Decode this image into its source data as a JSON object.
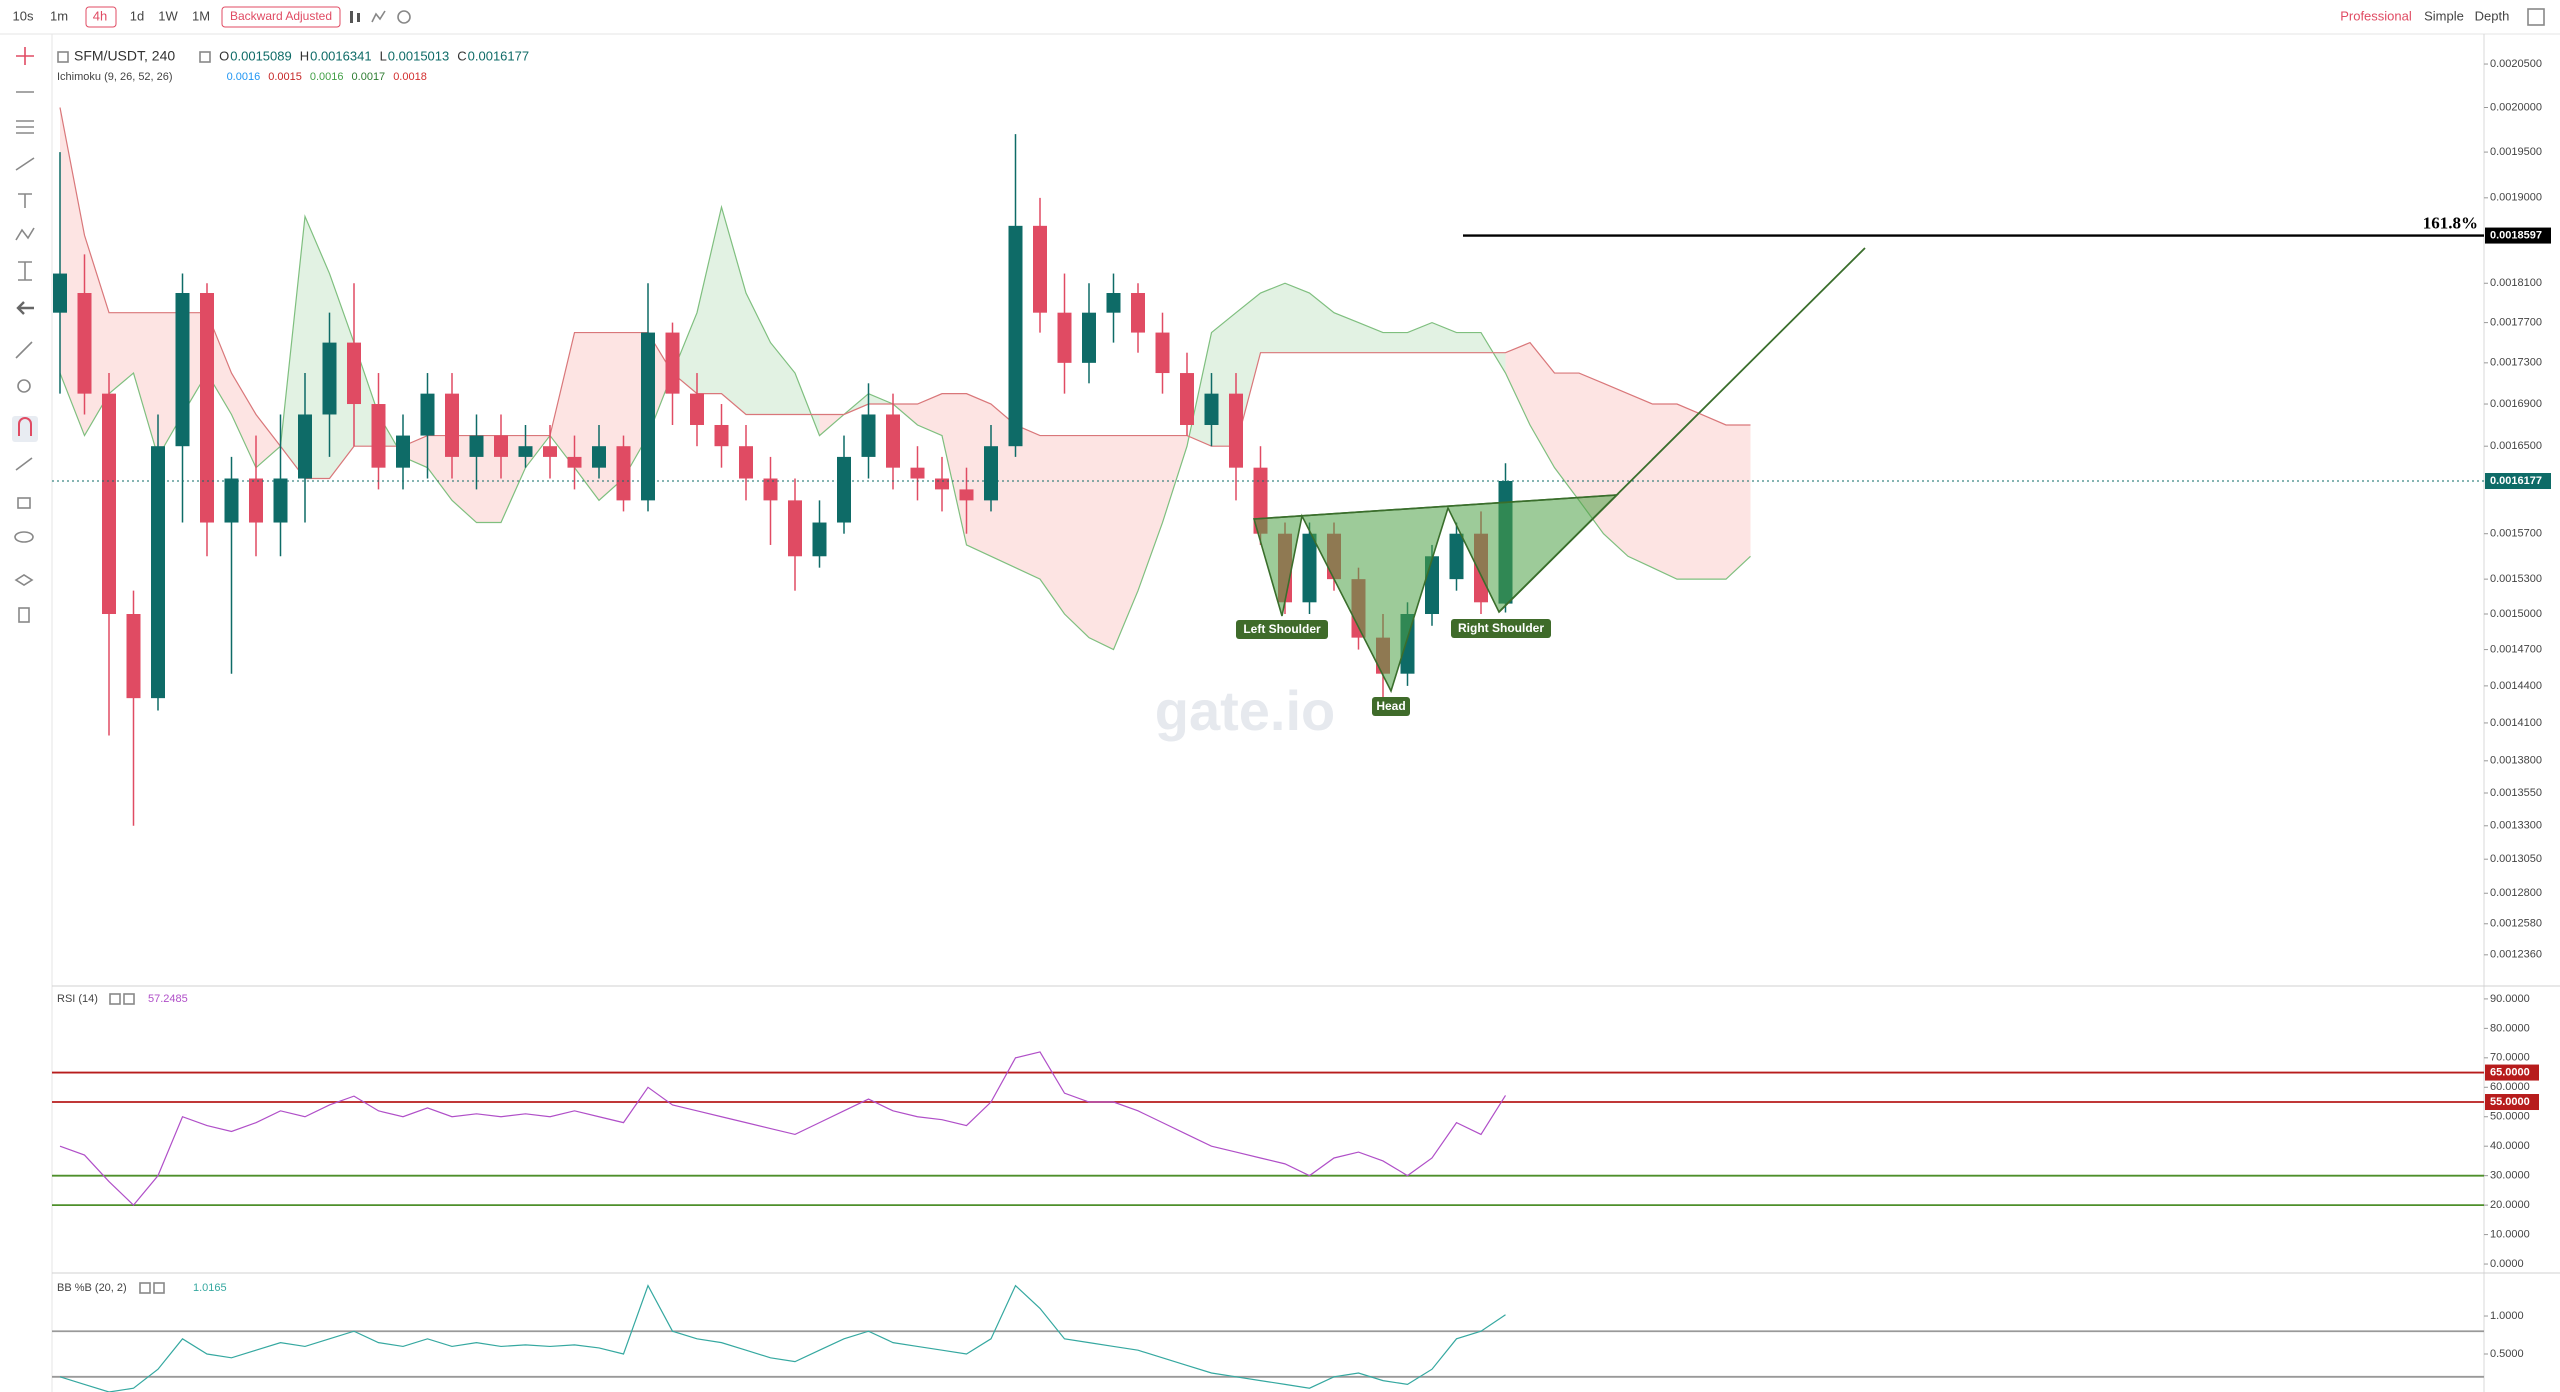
{
  "toolbar": {
    "intervals": [
      "10s",
      "1m",
      "4h",
      "1d",
      "1W",
      "1M"
    ],
    "adjust": "Backward Adjusted",
    "views": [
      "Professional",
      "Simple",
      "Depth"
    ]
  },
  "legend": {
    "symbol": "SFM/USDT, 240",
    "ohlc_labels": [
      "O",
      "H",
      "L",
      "C"
    ],
    "ichimoku": "Ichimoku (9, 26, 52, 26)",
    "ichimoku_values": [
      {
        "value": 0.0016,
        "color": "#2196f3"
      },
      {
        "value": 0.0015,
        "color": "#c62828"
      },
      {
        "value": 0.0016,
        "color": "#43a047"
      },
      {
        "value": 0.0017,
        "color": "#2e7d32"
      },
      {
        "value": 0.0018,
        "color": "#d32f2f"
      }
    ]
  },
  "watermark": "gate.io",
  "chart_data": [
    {
      "type": "candlestick",
      "log": true,
      "ylim": [
        0.001215,
        0.002077
      ],
      "yticks": [
        {
          "value": 0.00205,
          "label": "0.0020500"
        },
        {
          "value": 0.002,
          "label": "0.0020000"
        },
        {
          "value": 0.00195,
          "label": "0.0019500"
        },
        {
          "value": 0.0019,
          "label": "0.0019000"
        },
        {
          "value": 0.00181,
          "label": "0.0018100"
        },
        {
          "value": 0.00177,
          "label": "0.0017700"
        },
        {
          "value": 0.00173,
          "label": "0.0017300"
        },
        {
          "value": 0.00169,
          "label": "0.0016900"
        },
        {
          "value": 0.00165,
          "label": "0.0016500"
        },
        {
          "value": 0.00157,
          "label": "0.0015700"
        },
        {
          "value": 0.00153,
          "label": "0.0015300"
        },
        {
          "value": 0.0015,
          "label": "0.0015000"
        },
        {
          "value": 0.00147,
          "label": "0.0014700"
        },
        {
          "value": 0.00144,
          "label": "0.0014400"
        },
        {
          "value": 0.00141,
          "label": "0.0014100"
        },
        {
          "value": 0.00138,
          "label": "0.0013800"
        },
        {
          "value": 0.001355,
          "label": "0.0013550"
        },
        {
          "value": 0.00133,
          "label": "0.0013300"
        },
        {
          "value": 0.001305,
          "label": "0.0013050"
        },
        {
          "value": 0.00128,
          "label": "0.0012800"
        },
        {
          "value": 0.001258,
          "label": "0.0012580"
        },
        {
          "value": 0.001236,
          "label": "0.0012360"
        }
      ],
      "up_color": "#0e6b67",
      "down_color": "#e04b63",
      "ohlc": [
        [
          0.00178,
          0.00195,
          0.0017,
          0.00182
        ],
        [
          0.0018,
          0.00184,
          0.00168,
          0.0017
        ],
        [
          0.0017,
          0.00172,
          0.0014,
          0.0015
        ],
        [
          0.0015,
          0.00152,
          0.00133,
          0.00143
        ],
        [
          0.00143,
          0.00168,
          0.00142,
          0.00165
        ],
        [
          0.00165,
          0.00182,
          0.00158,
          0.0018
        ],
        [
          0.0018,
          0.00181,
          0.00155,
          0.00158
        ],
        [
          0.00158,
          0.00164,
          0.00145,
          0.00162
        ],
        [
          0.00162,
          0.00166,
          0.00155,
          0.00158
        ],
        [
          0.00158,
          0.00168,
          0.00155,
          0.00162
        ],
        [
          0.00162,
          0.00172,
          0.00158,
          0.00168
        ],
        [
          0.00168,
          0.00178,
          0.00164,
          0.00175
        ],
        [
          0.00175,
          0.00181,
          0.00165,
          0.00169
        ],
        [
          0.00169,
          0.00172,
          0.00161,
          0.00163
        ],
        [
          0.00163,
          0.00168,
          0.00161,
          0.00166
        ],
        [
          0.00166,
          0.00172,
          0.00162,
          0.0017
        ],
        [
          0.0017,
          0.00172,
          0.00162,
          0.00164
        ],
        [
          0.00164,
          0.00168,
          0.00161,
          0.00166
        ],
        [
          0.00166,
          0.00168,
          0.00162,
          0.00164
        ],
        [
          0.00164,
          0.00167,
          0.00163,
          0.00165
        ],
        [
          0.00165,
          0.00167,
          0.00162,
          0.00164
        ],
        [
          0.00164,
          0.00166,
          0.00161,
          0.00163
        ],
        [
          0.00163,
          0.00167,
          0.00162,
          0.00165
        ],
        [
          0.00165,
          0.00166,
          0.00159,
          0.0016
        ],
        [
          0.0016,
          0.00181,
          0.00159,
          0.00176
        ],
        [
          0.00176,
          0.00177,
          0.00167,
          0.0017
        ],
        [
          0.0017,
          0.00172,
          0.00165,
          0.00167
        ],
        [
          0.00167,
          0.00169,
          0.00163,
          0.00165
        ],
        [
          0.00165,
          0.00167,
          0.0016,
          0.00162
        ],
        [
          0.00162,
          0.00164,
          0.00156,
          0.0016
        ],
        [
          0.0016,
          0.00162,
          0.00152,
          0.00155
        ],
        [
          0.00155,
          0.0016,
          0.00154,
          0.00158
        ],
        [
          0.00158,
          0.00166,
          0.00157,
          0.00164
        ],
        [
          0.00164,
          0.00171,
          0.00162,
          0.00168
        ],
        [
          0.00168,
          0.0017,
          0.00161,
          0.00163
        ],
        [
          0.00163,
          0.00165,
          0.0016,
          0.00162
        ],
        [
          0.00162,
          0.00164,
          0.00159,
          0.00161
        ],
        [
          0.00161,
          0.00163,
          0.00157,
          0.0016
        ],
        [
          0.0016,
          0.00167,
          0.00159,
          0.00165
        ],
        [
          0.00165,
          0.00197,
          0.00164,
          0.00187
        ],
        [
          0.00187,
          0.0019,
          0.00176,
          0.00178
        ],
        [
          0.00178,
          0.00182,
          0.0017,
          0.00173
        ],
        [
          0.00173,
          0.00181,
          0.00171,
          0.00178
        ],
        [
          0.00178,
          0.00182,
          0.00175,
          0.0018
        ],
        [
          0.0018,
          0.00181,
          0.00174,
          0.00176
        ],
        [
          0.00176,
          0.00178,
          0.0017,
          0.00172
        ],
        [
          0.00172,
          0.00174,
          0.00166,
          0.00167
        ],
        [
          0.00167,
          0.00172,
          0.00165,
          0.0017
        ],
        [
          0.0017,
          0.00172,
          0.0016,
          0.00163
        ],
        [
          0.00163,
          0.00165,
          0.00156,
          0.00157
        ],
        [
          0.00157,
          0.00158,
          0.0015,
          0.00151
        ],
        [
          0.00151,
          0.00158,
          0.0015,
          0.00157
        ],
        [
          0.00157,
          0.00158,
          0.00152,
          0.00153
        ],
        [
          0.00153,
          0.00154,
          0.00147,
          0.00148
        ],
        [
          0.00148,
          0.0015,
          0.00143,
          0.00145
        ],
        [
          0.00145,
          0.00151,
          0.00144,
          0.0015
        ],
        [
          0.0015,
          0.00156,
          0.00149,
          0.00155
        ],
        [
          0.00153,
          0.00158,
          0.00152,
          0.00157
        ],
        [
          0.00157,
          0.00159,
          0.0015,
          0.00151
        ],
        [
          0.0015089,
          0.0016341,
          0.0015013,
          0.0016177
        ]
      ],
      "span_a": {
        "color": "#7fbf7f",
        "values": [
          0.00172,
          0.00166,
          0.0017,
          0.00172,
          0.00164,
          0.00168,
          0.00172,
          0.00168,
          0.00163,
          0.00165,
          0.00188,
          0.00182,
          0.00175,
          0.00168,
          0.00164,
          0.00163,
          0.0016,
          0.00158,
          0.00158,
          0.00163,
          0.00166,
          0.00163,
          0.0016,
          0.00162,
          0.00166,
          0.00172,
          0.00178,
          0.00189,
          0.0018,
          0.00175,
          0.00172,
          0.00166,
          0.00168,
          0.0017,
          0.00169,
          0.00167,
          0.00166,
          0.00156,
          0.00155,
          0.00154,
          0.00153,
          0.0015,
          0.00148,
          0.00147,
          0.00152,
          0.00158,
          0.00165,
          0.00176,
          0.00178,
          0.0018,
          0.00181,
          0.0018,
          0.00178,
          0.00177,
          0.00176,
          0.00176,
          0.00177,
          0.00176,
          0.00176,
          0.00172,
          0.00167,
          0.00163,
          0.0016,
          0.00157,
          0.00155,
          0.00154,
          0.00153,
          0.00153,
          0.00153,
          0.00155
        ]
      },
      "span_b": {
        "color": "#d9777a",
        "values": [
          0.002,
          0.00186,
          0.00178,
          0.00178,
          0.00178,
          0.00178,
          0.00178,
          0.00172,
          0.00168,
          0.00165,
          0.00162,
          0.00162,
          0.00165,
          0.00165,
          0.00165,
          0.00166,
          0.00166,
          0.00166,
          0.00166,
          0.00166,
          0.00166,
          0.00176,
          0.00176,
          0.00176,
          0.00176,
          0.00172,
          0.0017,
          0.0017,
          0.00168,
          0.00168,
          0.00168,
          0.00168,
          0.00168,
          0.00169,
          0.00169,
          0.00169,
          0.0017,
          0.0017,
          0.00169,
          0.00167,
          0.00166,
          0.00166,
          0.00166,
          0.00166,
          0.00166,
          0.00166,
          0.00166,
          0.00165,
          0.00165,
          0.00174,
          0.00174,
          0.00174,
          0.00174,
          0.00174,
          0.00174,
          0.00174,
          0.00174,
          0.00174,
          0.00174,
          0.00174,
          0.00175,
          0.00172,
          0.00172,
          0.00171,
          0.0017,
          0.00169,
          0.00169,
          0.00168,
          0.00167,
          0.00167
        ]
      },
      "fib": {
        "label": "161.8%",
        "value": 0.0018597
      },
      "pattern_labels": [
        "Left Shoulder",
        "Head",
        "Right Shoulder"
      ]
    },
    {
      "type": "line",
      "title": "RSI (14)",
      "color": "#b04fc8",
      "ylim": [
        -2.7,
        93.7
      ],
      "yticks": [
        {
          "value": 90,
          "label": "90.0000"
        },
        {
          "value": 80,
          "label": "80.0000"
        },
        {
          "value": 70,
          "label": "70.0000"
        },
        {
          "value": 60,
          "label": "60.0000"
        },
        {
          "value": 50,
          "label": "50.0000"
        },
        {
          "value": 40,
          "label": "40.0000"
        },
        {
          "value": 30,
          "label": "30.0000"
        },
        {
          "value": 20,
          "label": "20.0000"
        },
        {
          "value": 10,
          "label": "10.0000"
        },
        {
          "value": 0,
          "label": "0.0000"
        }
      ],
      "levels": [
        {
          "value": 65,
          "label": "65.0000",
          "color": "#b71c1c"
        },
        {
          "value": 55,
          "label": "55.0000",
          "color": "#b71c1c"
        },
        {
          "value": 30,
          "color": "#4d8f2a"
        },
        {
          "value": 20,
          "color": "#4d8f2a"
        }
      ],
      "values": [
        40,
        37,
        28,
        20,
        30,
        50,
        47,
        45,
        48,
        52,
        50,
        54,
        57,
        52,
        50,
        53,
        50,
        51,
        50,
        51,
        50,
        52,
        50,
        48,
        60,
        54,
        52,
        50,
        48,
        46,
        44,
        48,
        52,
        56,
        52,
        50,
        49,
        47,
        55,
        70,
        72,
        58,
        55,
        55,
        52,
        48,
        44,
        40,
        38,
        36,
        34,
        30,
        36,
        38,
        35,
        30,
        36,
        48,
        44,
        57.2485
      ]
    },
    {
      "type": "line",
      "title": "BB %B (20, 2)",
      "color": "#35a8a0",
      "ylim": [
        0,
        1.54
      ],
      "yticks": [
        {
          "value": 1,
          "label": "1.0000"
        },
        {
          "value": 0.5,
          "label": "0.5000"
        }
      ],
      "levels": [
        {
          "value": 0.8,
          "color": "#999999"
        },
        {
          "value": 0.2,
          "color": "#999999"
        }
      ],
      "values": [
        0.2,
        0.1,
        0.0,
        0.05,
        0.3,
        0.7,
        0.5,
        0.45,
        0.55,
        0.65,
        0.6,
        0.7,
        0.8,
        0.65,
        0.6,
        0.7,
        0.6,
        0.65,
        0.6,
        0.62,
        0.6,
        0.62,
        0.58,
        0.5,
        1.4,
        0.8,
        0.7,
        0.65,
        0.55,
        0.45,
        0.4,
        0.55,
        0.7,
        0.8,
        0.65,
        0.6,
        0.55,
        0.5,
        0.7,
        1.4,
        1.1,
        0.7,
        0.65,
        0.6,
        0.55,
        0.45,
        0.35,
        0.25,
        0.2,
        0.15,
        0.1,
        0.05,
        0.2,
        0.25,
        0.15,
        0.1,
        0.3,
        0.7,
        0.8,
        1.0165
      ]
    }
  ]
}
